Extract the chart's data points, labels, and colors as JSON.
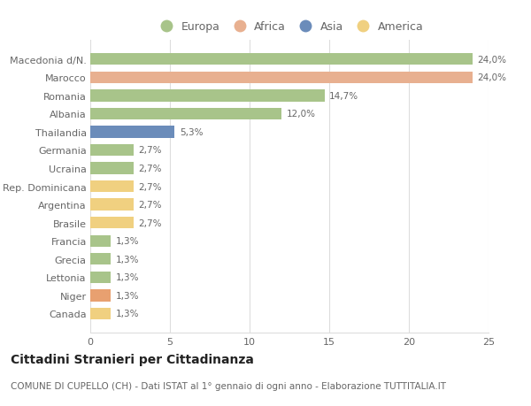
{
  "categories": [
    "Macedonia d/N.",
    "Marocco",
    "Romania",
    "Albania",
    "Thailandia",
    "Germania",
    "Ucraina",
    "Rep. Dominicana",
    "Argentina",
    "Brasile",
    "Francia",
    "Grecia",
    "Lettonia",
    "Niger",
    "Canada"
  ],
  "values": [
    24.0,
    24.0,
    14.7,
    12.0,
    5.3,
    2.7,
    2.7,
    2.7,
    2.7,
    2.7,
    1.3,
    1.3,
    1.3,
    1.3,
    1.3
  ],
  "labels": [
    "24,0%",
    "24,0%",
    "14,7%",
    "12,0%",
    "5,3%",
    "2,7%",
    "2,7%",
    "2,7%",
    "2,7%",
    "2,7%",
    "1,3%",
    "1,3%",
    "1,3%",
    "1,3%",
    "1,3%"
  ],
  "bar_colors": [
    "#a8c48a",
    "#e8b090",
    "#a8c48a",
    "#a8c48a",
    "#6b8cba",
    "#a8c48a",
    "#a8c48a",
    "#f0d080",
    "#f0d080",
    "#f0d080",
    "#a8c48a",
    "#a8c48a",
    "#a8c48a",
    "#e8a070",
    "#f0d080"
  ],
  "legend_labels": [
    "Europa",
    "Africa",
    "Asia",
    "America"
  ],
  "legend_colors": [
    "#a8c48a",
    "#e8b090",
    "#6b8cba",
    "#f0d080"
  ],
  "title": "Cittadini Stranieri per Cittadinanza",
  "subtitle": "COMUNE DI CUPELLO (CH) - Dati ISTAT al 1° gennaio di ogni anno - Elaborazione TUTTITALIA.IT",
  "xlim": [
    0,
    25
  ],
  "xticks": [
    0,
    5,
    10,
    15,
    20,
    25
  ],
  "background_color": "#ffffff",
  "bar_height": 0.65,
  "grid_color": "#dddddd",
  "text_color": "#666666",
  "title_color": "#222222",
  "title_fontsize": 10,
  "subtitle_fontsize": 7.5,
  "label_fontsize": 7.5,
  "tick_fontsize": 8,
  "legend_fontsize": 9
}
